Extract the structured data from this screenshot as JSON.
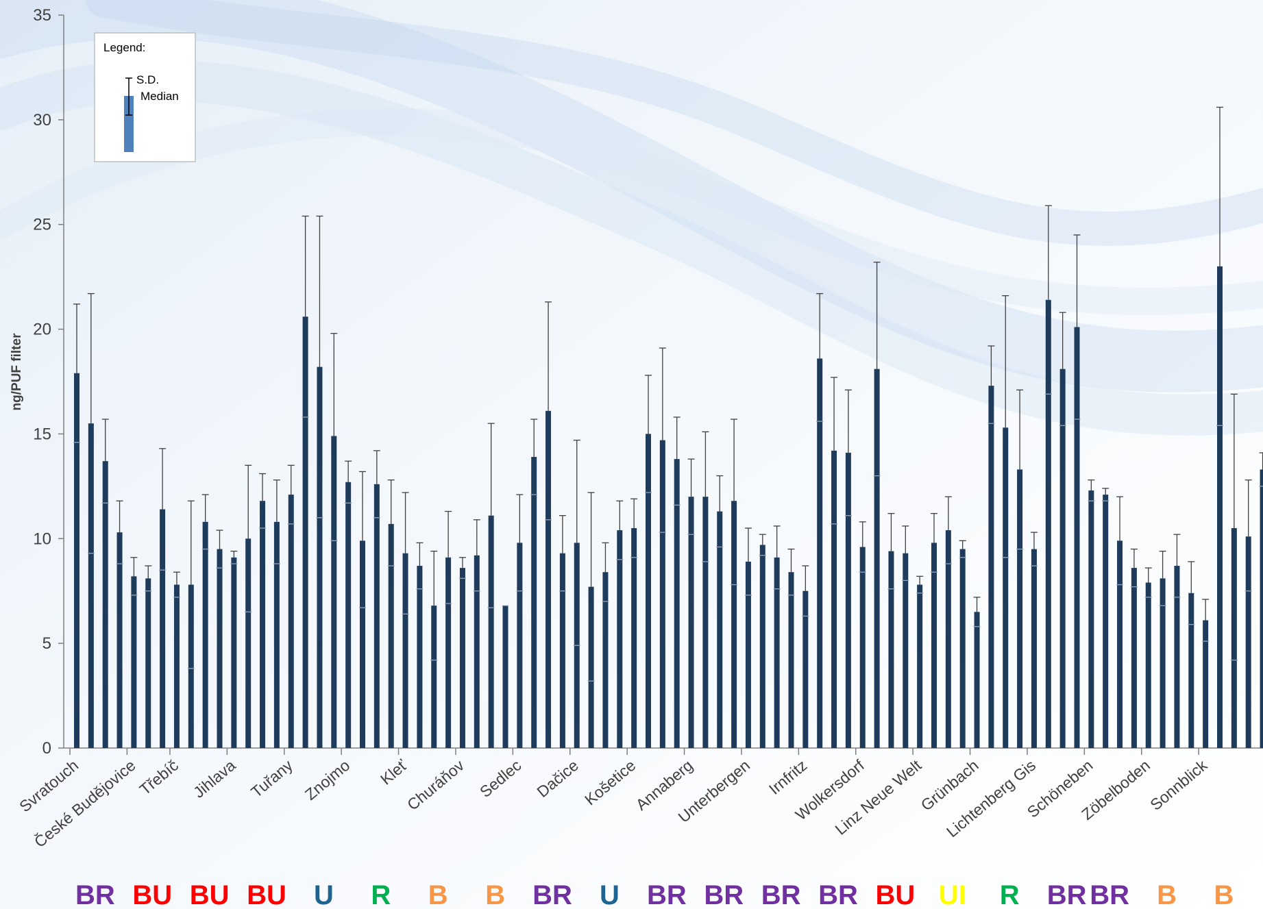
{
  "chart_data": {
    "type": "bar",
    "ylabel": "ng/PUF filter",
    "xlabel": "",
    "ylim": [
      0,
      35
    ],
    "yticks": [
      0,
      5,
      10,
      15,
      20,
      25,
      30,
      35
    ],
    "grid": false,
    "legend": {
      "title": "Legend:",
      "sd_label": "S.D.",
      "median_label": "Median",
      "placement": "top-left"
    },
    "bar_color": "#1f3b5c",
    "values": [
      17.9,
      15.5,
      13.7,
      10.3,
      8.2,
      8.1,
      11.4,
      7.8,
      7.8,
      10.8,
      9.5,
      9.1,
      10.0,
      11.8,
      10.8,
      12.1,
      20.6,
      18.2,
      14.9,
      12.7,
      9.9,
      12.6,
      10.7,
      9.3,
      8.7,
      6.8,
      9.1,
      8.6,
      9.2,
      11.1,
      6.8,
      9.8,
      13.9,
      16.1,
      9.3,
      9.8,
      7.7,
      8.4,
      10.4,
      10.5,
      15.0,
      14.7,
      13.8,
      12.0,
      12.0,
      11.3,
      11.8,
      8.9,
      9.7,
      9.1,
      8.4,
      7.5,
      18.6,
      14.2,
      14.1,
      9.6,
      18.1,
      9.4,
      9.3,
      7.8,
      9.8,
      10.4,
      9.5,
      6.5,
      17.3,
      15.3,
      13.3,
      9.5,
      21.4,
      18.1,
      20.1,
      12.3,
      12.1,
      9.9,
      8.6,
      7.9,
      8.1,
      8.7,
      7.4,
      6.1,
      23.0,
      10.5,
      10.1,
      13.3
    ],
    "sd_upper": [
      21.2,
      21.7,
      15.7,
      11.8,
      9.1,
      8.7,
      14.3,
      8.4,
      11.8,
      12.1,
      10.4,
      9.4,
      13.5,
      13.1,
      12.8,
      13.5,
      25.4,
      25.4,
      19.8,
      13.7,
      13.2,
      14.2,
      12.8,
      12.2,
      9.8,
      9.4,
      11.3,
      9.1,
      10.9,
      15.5,
      6.8,
      12.1,
      15.7,
      21.3,
      11.1,
      14.7,
      12.2,
      9.8,
      11.8,
      11.9,
      17.8,
      19.1,
      15.8,
      13.8,
      15.1,
      13.0,
      15.7,
      10.5,
      10.2,
      10.6,
      9.5,
      8.7,
      21.7,
      17.7,
      17.1,
      10.8,
      23.2,
      11.2,
      10.6,
      8.2,
      11.2,
      12.0,
      9.9,
      7.2,
      19.2,
      21.6,
      17.1,
      10.3,
      25.9,
      20.8,
      24.5,
      12.8,
      12.4,
      12.0,
      9.5,
      8.6,
      9.4,
      10.2,
      8.9,
      7.1,
      30.6,
      16.9,
      12.8,
      14.1
    ],
    "sd_lower": [
      14.6,
      9.3,
      11.7,
      8.8,
      7.3,
      7.5,
      8.5,
      7.2,
      3.8,
      9.5,
      8.6,
      8.8,
      6.5,
      10.5,
      8.8,
      10.7,
      15.8,
      11.0,
      9.9,
      11.7,
      6.7,
      11.0,
      8.7,
      6.4,
      7.6,
      4.2,
      6.9,
      8.1,
      7.5,
      6.7,
      6.8,
      7.5,
      12.1,
      10.9,
      7.5,
      4.9,
      3.2,
      7.0,
      9.0,
      9.1,
      12.2,
      10.3,
      11.6,
      10.2,
      8.9,
      9.6,
      7.8,
      7.3,
      9.2,
      7.6,
      7.3,
      6.3,
      15.6,
      10.7,
      11.1,
      8.4,
      13.0,
      7.6,
      8.0,
      7.4,
      8.4,
      8.8,
      9.1,
      5.8,
      15.5,
      9.1,
      9.5,
      8.7,
      16.9,
      15.4,
      15.7,
      11.8,
      11.8,
      7.8,
      7.7,
      7.2,
      6.8,
      7.2,
      5.9,
      5.1,
      15.4,
      4.2,
      7.5,
      12.5
    ],
    "medians": [
      14.6,
      9.3,
      11.7,
      8.8,
      7.3,
      7.5,
      8.5,
      7.2,
      3.8,
      9.5,
      8.6,
      8.8,
      6.5,
      10.5,
      8.8,
      10.7,
      15.8,
      11.0,
      9.9,
      11.7,
      6.7,
      11.0,
      8.7,
      6.4,
      7.6,
      4.2,
      6.9,
      8.1,
      7.5,
      6.7,
      6.8,
      7.5,
      12.1,
      10.9,
      7.5,
      4.9,
      3.2,
      7.0,
      9.0,
      9.1,
      12.2,
      10.3,
      11.6,
      10.2,
      8.9,
      9.6,
      7.8,
      7.3,
      9.2,
      7.6,
      7.3,
      6.3,
      15.6,
      10.7,
      11.1,
      8.4,
      13.0,
      7.6,
      8.0,
      7.4,
      8.4,
      8.8,
      9.1,
      5.8,
      15.5,
      9.1,
      9.5,
      8.7,
      16.9,
      15.4,
      15.7,
      11.8,
      11.8,
      7.8,
      7.7,
      7.2,
      6.8,
      7.2,
      5.9,
      5.1,
      15.4,
      4.2,
      7.5,
      12.5
    ],
    "site_labels": [
      {
        "name": "Svratouch",
        "bar_index": 0
      },
      {
        "name": "České Budějovice",
        "bar_index": 4
      },
      {
        "name": "Třebíč",
        "bar_index": 7
      },
      {
        "name": "Jihlava",
        "bar_index": 11
      },
      {
        "name": "Tuřany",
        "bar_index": 15
      },
      {
        "name": "Znojmo",
        "bar_index": 19
      },
      {
        "name": "Kleť",
        "bar_index": 23
      },
      {
        "name": "Churáňov",
        "bar_index": 27
      },
      {
        "name": "Sedlec",
        "bar_index": 31
      },
      {
        "name": "Dačice",
        "bar_index": 35
      },
      {
        "name": "Košetice",
        "bar_index": 39
      },
      {
        "name": "Annaberg",
        "bar_index": 43
      },
      {
        "name": "Unterbergen",
        "bar_index": 47
      },
      {
        "name": "Irnfritz",
        "bar_index": 51
      },
      {
        "name": "Wolkersdorf",
        "bar_index": 55
      },
      {
        "name": "Linz Neue Welt",
        "bar_index": 59
      },
      {
        "name": "Grünbach",
        "bar_index": 63
      },
      {
        "name": "Lichtenberg Gis",
        "bar_index": 67
      },
      {
        "name": "Schöneben",
        "bar_index": 71
      },
      {
        "name": "Zöbelboden",
        "bar_index": 75
      },
      {
        "name": "Sonnblick",
        "bar_index": 79
      }
    ],
    "category_codes": [
      {
        "code": "BR",
        "color": "#7030a0",
        "bar_index": 1
      },
      {
        "code": "BU",
        "color": "#ff0000",
        "bar_index": 5
      },
      {
        "code": "BU",
        "color": "#ff0000",
        "bar_index": 9
      },
      {
        "code": "BU",
        "color": "#ff0000",
        "bar_index": 13
      },
      {
        "code": "U",
        "color": "#1f6391",
        "bar_index": 17
      },
      {
        "code": "R",
        "color": "#00b050",
        "bar_index": 21
      },
      {
        "code": "B",
        "color": "#f79646",
        "bar_index": 25
      },
      {
        "code": "B",
        "color": "#f79646",
        "bar_index": 29
      },
      {
        "code": "BR",
        "color": "#7030a0",
        "bar_index": 33
      },
      {
        "code": "U",
        "color": "#1f6391",
        "bar_index": 37
      },
      {
        "code": "BR",
        "color": "#7030a0",
        "bar_index": 41
      },
      {
        "code": "BR",
        "color": "#7030a0",
        "bar_index": 45
      },
      {
        "code": "BR",
        "color": "#7030a0",
        "bar_index": 49
      },
      {
        "code": "BR",
        "color": "#7030a0",
        "bar_index": 53
      },
      {
        "code": "BU",
        "color": "#ff0000",
        "bar_index": 57
      },
      {
        "code": "UI",
        "color": "#ffff00",
        "bar_index": 61
      },
      {
        "code": "R",
        "color": "#00b050",
        "bar_index": 65
      },
      {
        "code": "BR",
        "color": "#7030a0",
        "bar_index": 69
      },
      {
        "code": "BR",
        "color": "#7030a0",
        "bar_index": 72
      },
      {
        "code": "B",
        "color": "#f79646",
        "bar_index": 76
      },
      {
        "code": "B",
        "color": "#f79646",
        "bar_index": 80
      }
    ]
  }
}
